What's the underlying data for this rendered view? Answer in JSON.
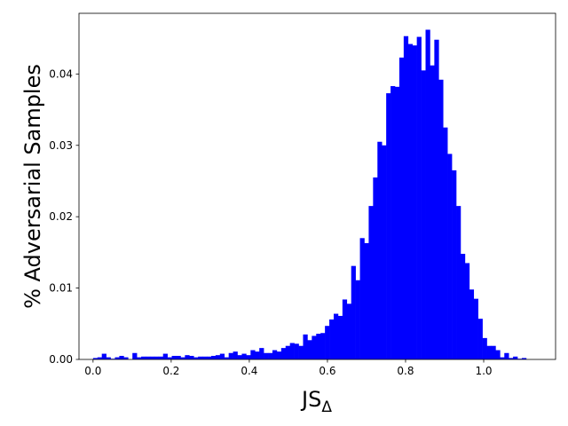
{
  "chart_data": {
    "type": "histogram",
    "x_label": "JS",
    "x_label_subscript": "Δ",
    "y_label": "% Adversarial Samples",
    "color": "#0000ff",
    "bins": [
      0,
      0.0112,
      0.0224,
      0.0336,
      0.0448,
      0.056,
      0.0672,
      0.0784,
      0.0896,
      0.1008,
      0.112,
      0.1232,
      0.1344,
      0.1456,
      0.1568,
      0.168,
      0.1792,
      0.1904,
      0.2016,
      0.2128,
      0.224,
      0.2352,
      0.2464,
      0.2576,
      0.2688,
      0.28,
      0.2912,
      0.3024,
      0.3136,
      0.3248,
      0.336,
      0.3472,
      0.3584,
      0.3696,
      0.3808,
      0.392,
      0.4032,
      0.4144,
      0.4256,
      0.4368,
      0.448,
      0.4592,
      0.4704,
      0.4816,
      0.4928,
      0.504,
      0.5152,
      0.5264,
      0.5376,
      0.5488,
      0.56,
      0.5712,
      0.5824,
      0.5936,
      0.6048,
      0.616,
      0.6272,
      0.6384,
      0.6496,
      0.6608,
      0.672,
      0.6832,
      0.6944,
      0.7056,
      0.7168,
      0.728,
      0.7392,
      0.7504,
      0.7616,
      0.7728,
      0.784,
      0.7952,
      0.8064,
      0.8176,
      0.8288,
      0.84,
      0.8512,
      0.8624,
      0.8736,
      0.8848,
      0.896,
      0.9072,
      0.9184,
      0.9296,
      0.9408,
      0.952,
      0.9632,
      0.9744,
      0.9856,
      0.9968,
      1.008,
      1.0192,
      1.0304,
      1.0416,
      1.0528,
      1.064,
      1.0752,
      1.0864,
      1.0976,
      1.1088,
      1.12
    ],
    "values": [
      0.0002,
      0.0003,
      0.0008,
      0.0003,
      0.0001,
      0.0003,
      0.0005,
      0.0003,
      0,
      0.0009,
      0.0003,
      0.0004,
      0.0004,
      0.0004,
      0.0004,
      0.0004,
      0.0008,
      0.0003,
      0.0005,
      0.0005,
      0.0003,
      0.0006,
      0.0005,
      0.0003,
      0.0004,
      0.0004,
      0.0004,
      0.0005,
      0.0006,
      0.0008,
      0.0003,
      0.0009,
      0.0011,
      0.0006,
      0.0008,
      0.0006,
      0.0013,
      0.0011,
      0.0016,
      0.0009,
      0.0009,
      0.0013,
      0.0011,
      0.0016,
      0.0019,
      0.0023,
      0.0022,
      0.0019,
      0.0035,
      0.0027,
      0.0033,
      0.0036,
      0.0037,
      0.0047,
      0.0056,
      0.0064,
      0.0061,
      0.0084,
      0.0078,
      0.0131,
      0.0111,
      0.017,
      0.0163,
      0.0215,
      0.0255,
      0.0305,
      0.03,
      0.0373,
      0.0383,
      0.0382,
      0.0423,
      0.0453,
      0.0442,
      0.044,
      0.0452,
      0.0405,
      0.0462,
      0.0412,
      0.0448,
      0.0392,
      0.0325,
      0.0288,
      0.0265,
      0.0215,
      0.0148,
      0.0135,
      0.0098,
      0.0085,
      0.0057,
      0.003,
      0.0019,
      0.0019,
      0.0013,
      0.0003,
      0.0009,
      0.0002,
      0.0004,
      0.0001,
      0.0002,
      0
    ],
    "xlim": [
      -0.036,
      1.184
    ],
    "ylim": [
      0,
      0.0485
    ],
    "xticks": [
      {
        "value": 0,
        "label": "0.0"
      },
      0.2,
      0.4,
      0.6,
      0.8,
      {
        "value": 1,
        "label": "1.0"
      }
    ],
    "yticks": [
      {
        "value": 0,
        "label": "0.00"
      },
      0.01,
      0.02,
      0.03,
      0.04
    ],
    "grid": false
  }
}
